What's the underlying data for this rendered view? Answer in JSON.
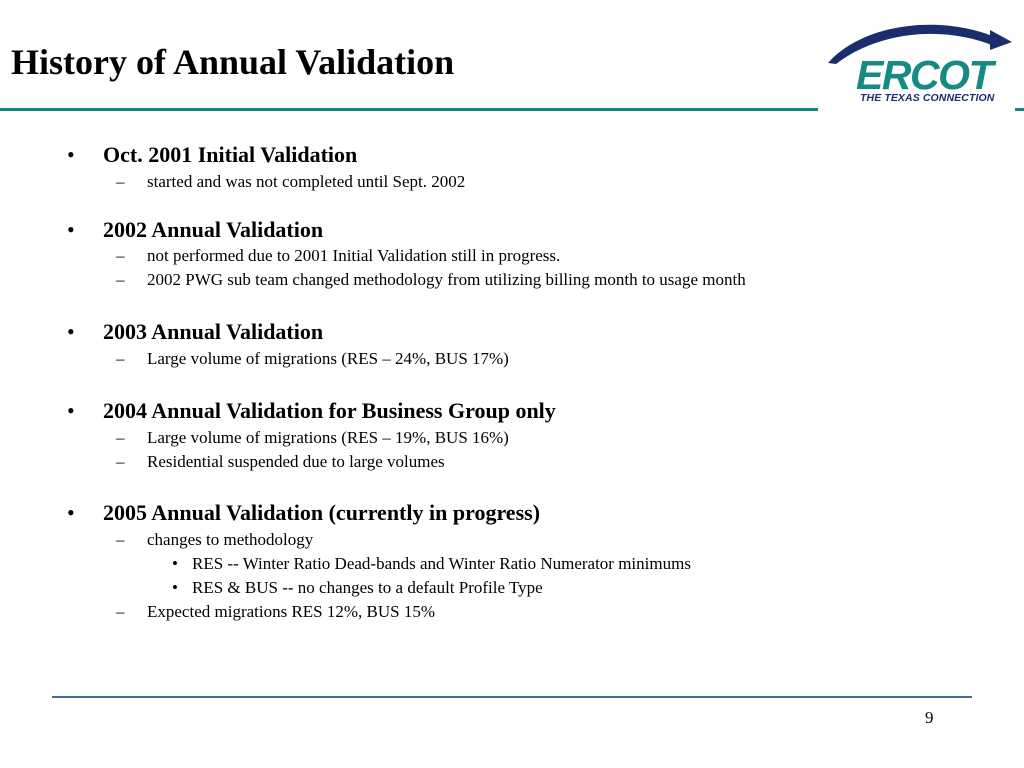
{
  "slide": {
    "title": "History of Annual Validation",
    "page_number": "9"
  },
  "logo": {
    "wordmark": "ERCOT",
    "tagline": "THE TEXAS CONNECTION"
  },
  "bullet_glyph": "•",
  "dash_glyph": "–",
  "colors": {
    "header_rule": "#14867f",
    "footer_rule": "#3d6fa3",
    "logo_navy": "#1b2e6b",
    "logo_teal": "#178a83"
  },
  "sections": [
    {
      "heading": "Oct. 2001 Initial Validation",
      "items": [
        "started and was not completed until Sept. 2002"
      ]
    },
    {
      "heading": "2002 Annual Validation",
      "items": [
        "not performed due to 2001 Initial Validation still in progress.",
        "2002 PWG sub team changed methodology from utilizing billing month to usage month"
      ]
    },
    {
      "heading": "2003 Annual Validation",
      "items": [
        "Large volume of migrations (RES – 24%, BUS 17%)"
      ]
    },
    {
      "heading": "2004 Annual Validation for Business Group only",
      "items": [
        "Large volume of migrations (RES – 19%, BUS 16%)",
        "Residential suspended due to large volumes"
      ]
    },
    {
      "heading": "2005 Annual Validation (currently in progress)",
      "items": [
        "changes to methodology",
        "Expected migrations RES 12%, BUS 15%"
      ],
      "subitems": [
        "RES -- Winter Ratio Dead-bands and Winter Ratio Numerator minimums",
        "RES & BUS -- no changes to a default Profile Type"
      ]
    }
  ]
}
